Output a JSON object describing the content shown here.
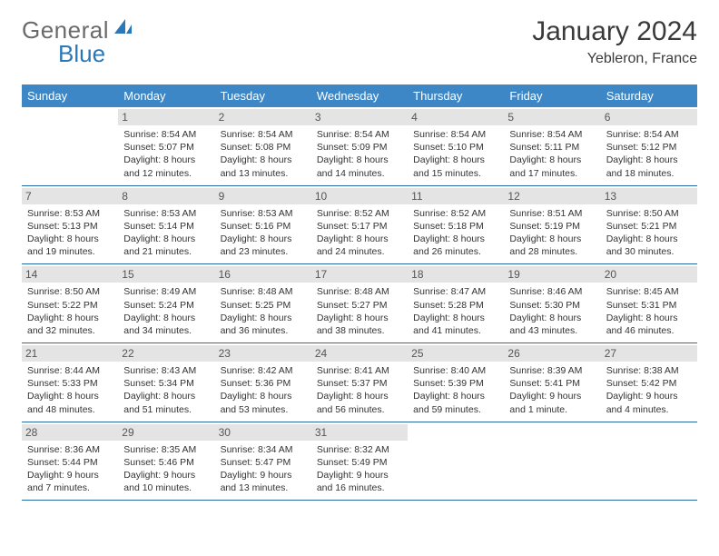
{
  "logo": {
    "text1": "General",
    "text2": "Blue"
  },
  "header": {
    "month": "January 2024",
    "location": "Yebleron, France"
  },
  "colors": {
    "header_bg": "#3d87c7",
    "header_text": "#ffffff",
    "daynum_bg": "#e4e4e4",
    "week_border": "#2a6aa3",
    "logo_blue": "#2a78b8",
    "logo_gray": "#6a6a6a"
  },
  "dow": [
    "Sunday",
    "Monday",
    "Tuesday",
    "Wednesday",
    "Thursday",
    "Friday",
    "Saturday"
  ],
  "weeks": [
    [
      {
        "n": "",
        "sr": "",
        "ss": "",
        "dl": ""
      },
      {
        "n": "1",
        "sr": "Sunrise: 8:54 AM",
        "ss": "Sunset: 5:07 PM",
        "dl": "Daylight: 8 hours and 12 minutes."
      },
      {
        "n": "2",
        "sr": "Sunrise: 8:54 AM",
        "ss": "Sunset: 5:08 PM",
        "dl": "Daylight: 8 hours and 13 minutes."
      },
      {
        "n": "3",
        "sr": "Sunrise: 8:54 AM",
        "ss": "Sunset: 5:09 PM",
        "dl": "Daylight: 8 hours and 14 minutes."
      },
      {
        "n": "4",
        "sr": "Sunrise: 8:54 AM",
        "ss": "Sunset: 5:10 PM",
        "dl": "Daylight: 8 hours and 15 minutes."
      },
      {
        "n": "5",
        "sr": "Sunrise: 8:54 AM",
        "ss": "Sunset: 5:11 PM",
        "dl": "Daylight: 8 hours and 17 minutes."
      },
      {
        "n": "6",
        "sr": "Sunrise: 8:54 AM",
        "ss": "Sunset: 5:12 PM",
        "dl": "Daylight: 8 hours and 18 minutes."
      }
    ],
    [
      {
        "n": "7",
        "sr": "Sunrise: 8:53 AM",
        "ss": "Sunset: 5:13 PM",
        "dl": "Daylight: 8 hours and 19 minutes."
      },
      {
        "n": "8",
        "sr": "Sunrise: 8:53 AM",
        "ss": "Sunset: 5:14 PM",
        "dl": "Daylight: 8 hours and 21 minutes."
      },
      {
        "n": "9",
        "sr": "Sunrise: 8:53 AM",
        "ss": "Sunset: 5:16 PM",
        "dl": "Daylight: 8 hours and 23 minutes."
      },
      {
        "n": "10",
        "sr": "Sunrise: 8:52 AM",
        "ss": "Sunset: 5:17 PM",
        "dl": "Daylight: 8 hours and 24 minutes."
      },
      {
        "n": "11",
        "sr": "Sunrise: 8:52 AM",
        "ss": "Sunset: 5:18 PM",
        "dl": "Daylight: 8 hours and 26 minutes."
      },
      {
        "n": "12",
        "sr": "Sunrise: 8:51 AM",
        "ss": "Sunset: 5:19 PM",
        "dl": "Daylight: 8 hours and 28 minutes."
      },
      {
        "n": "13",
        "sr": "Sunrise: 8:50 AM",
        "ss": "Sunset: 5:21 PM",
        "dl": "Daylight: 8 hours and 30 minutes."
      }
    ],
    [
      {
        "n": "14",
        "sr": "Sunrise: 8:50 AM",
        "ss": "Sunset: 5:22 PM",
        "dl": "Daylight: 8 hours and 32 minutes."
      },
      {
        "n": "15",
        "sr": "Sunrise: 8:49 AM",
        "ss": "Sunset: 5:24 PM",
        "dl": "Daylight: 8 hours and 34 minutes."
      },
      {
        "n": "16",
        "sr": "Sunrise: 8:48 AM",
        "ss": "Sunset: 5:25 PM",
        "dl": "Daylight: 8 hours and 36 minutes."
      },
      {
        "n": "17",
        "sr": "Sunrise: 8:48 AM",
        "ss": "Sunset: 5:27 PM",
        "dl": "Daylight: 8 hours and 38 minutes."
      },
      {
        "n": "18",
        "sr": "Sunrise: 8:47 AM",
        "ss": "Sunset: 5:28 PM",
        "dl": "Daylight: 8 hours and 41 minutes."
      },
      {
        "n": "19",
        "sr": "Sunrise: 8:46 AM",
        "ss": "Sunset: 5:30 PM",
        "dl": "Daylight: 8 hours and 43 minutes."
      },
      {
        "n": "20",
        "sr": "Sunrise: 8:45 AM",
        "ss": "Sunset: 5:31 PM",
        "dl": "Daylight: 8 hours and 46 minutes."
      }
    ],
    [
      {
        "n": "21",
        "sr": "Sunrise: 8:44 AM",
        "ss": "Sunset: 5:33 PM",
        "dl": "Daylight: 8 hours and 48 minutes."
      },
      {
        "n": "22",
        "sr": "Sunrise: 8:43 AM",
        "ss": "Sunset: 5:34 PM",
        "dl": "Daylight: 8 hours and 51 minutes."
      },
      {
        "n": "23",
        "sr": "Sunrise: 8:42 AM",
        "ss": "Sunset: 5:36 PM",
        "dl": "Daylight: 8 hours and 53 minutes."
      },
      {
        "n": "24",
        "sr": "Sunrise: 8:41 AM",
        "ss": "Sunset: 5:37 PM",
        "dl": "Daylight: 8 hours and 56 minutes."
      },
      {
        "n": "25",
        "sr": "Sunrise: 8:40 AM",
        "ss": "Sunset: 5:39 PM",
        "dl": "Daylight: 8 hours and 59 minutes."
      },
      {
        "n": "26",
        "sr": "Sunrise: 8:39 AM",
        "ss": "Sunset: 5:41 PM",
        "dl": "Daylight: 9 hours and 1 minute."
      },
      {
        "n": "27",
        "sr": "Sunrise: 8:38 AM",
        "ss": "Sunset: 5:42 PM",
        "dl": "Daylight: 9 hours and 4 minutes."
      }
    ],
    [
      {
        "n": "28",
        "sr": "Sunrise: 8:36 AM",
        "ss": "Sunset: 5:44 PM",
        "dl": "Daylight: 9 hours and 7 minutes."
      },
      {
        "n": "29",
        "sr": "Sunrise: 8:35 AM",
        "ss": "Sunset: 5:46 PM",
        "dl": "Daylight: 9 hours and 10 minutes."
      },
      {
        "n": "30",
        "sr": "Sunrise: 8:34 AM",
        "ss": "Sunset: 5:47 PM",
        "dl": "Daylight: 9 hours and 13 minutes."
      },
      {
        "n": "31",
        "sr": "Sunrise: 8:32 AM",
        "ss": "Sunset: 5:49 PM",
        "dl": "Daylight: 9 hours and 16 minutes."
      },
      {
        "n": "",
        "sr": "",
        "ss": "",
        "dl": ""
      },
      {
        "n": "",
        "sr": "",
        "ss": "",
        "dl": ""
      },
      {
        "n": "",
        "sr": "",
        "ss": "",
        "dl": ""
      }
    ]
  ]
}
